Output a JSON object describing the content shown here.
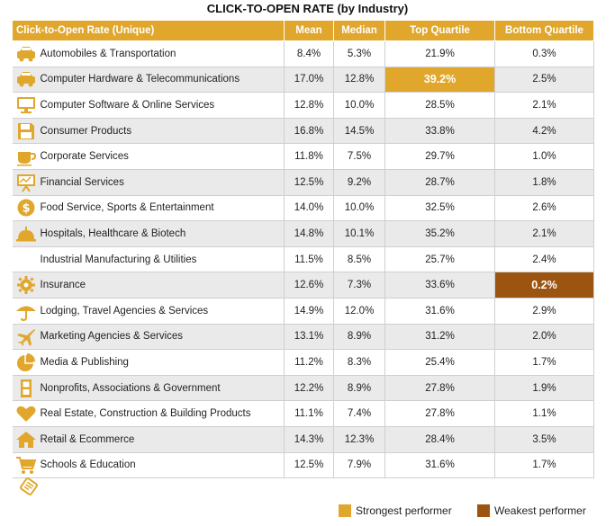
{
  "chart_data": {
    "type": "table",
    "title": "CLICK-TO-OPEN RATE (by Industry)",
    "columns": [
      "Click-to-Open Rate (Unique)",
      "Mean",
      "Median",
      "Top Quartile",
      "Bottom Quartile"
    ],
    "rows": [
      {
        "industry": "Automobiles & Transportation",
        "icon": "car-icon",
        "mean": "8.4%",
        "median": "5.3%",
        "top": "21.9%",
        "bottom": "0.3%"
      },
      {
        "industry": "Computer Hardware & Telecommunications",
        "icon": "car-icon",
        "mean": "17.0%",
        "median": "12.8%",
        "top": "39.2%",
        "bottom": "2.5%"
      },
      {
        "industry": "Computer Software & Online Services",
        "icon": "monitor-icon",
        "mean": "12.8%",
        "median": "10.0%",
        "top": "28.5%",
        "bottom": "2.1%"
      },
      {
        "industry": "Consumer Products",
        "icon": "floppy-disk-icon",
        "mean": "16.8%",
        "median": "14.5%",
        "top": "33.8%",
        "bottom": "4.2%"
      },
      {
        "industry": "Corporate Services",
        "icon": "coffee-cup-icon",
        "mean": "11.8%",
        "median": "7.5%",
        "top": "29.7%",
        "bottom": "1.0%"
      },
      {
        "industry": "Financial Services",
        "icon": "presentation-board-icon",
        "mean": "12.5%",
        "median": "9.2%",
        "top": "28.7%",
        "bottom": "1.8%"
      },
      {
        "industry": "Food Service, Sports & Entertainment",
        "icon": "dollar-coin-icon",
        "mean": "14.0%",
        "median": "10.0%",
        "top": "32.5%",
        "bottom": "2.6%"
      },
      {
        "industry": "Hospitals, Healthcare & Biotech",
        "icon": "service-bell-icon",
        "mean": "14.8%",
        "median": "10.1%",
        "top": "35.2%",
        "bottom": "2.1%"
      },
      {
        "industry": "Industrial Manufacturing & Utilities",
        "icon": "none",
        "mean": "11.5%",
        "median": "8.5%",
        "top": "25.7%",
        "bottom": "2.4%"
      },
      {
        "industry": "Insurance",
        "icon": "gear-icon",
        "mean": "12.6%",
        "median": "7.3%",
        "top": "33.6%",
        "bottom": "0.2%"
      },
      {
        "industry": "Lodging, Travel Agencies & Services",
        "icon": "umbrella-icon",
        "mean": "14.9%",
        "median": "12.0%",
        "top": "31.6%",
        "bottom": "2.9%"
      },
      {
        "industry": "Marketing Agencies & Services",
        "icon": "airplane-icon",
        "mean": "13.1%",
        "median": "8.9%",
        "top": "31.2%",
        "bottom": "2.0%"
      },
      {
        "industry": "Media & Publishing",
        "icon": "pie-chart-icon",
        "mean": "11.2%",
        "median": "8.3%",
        "top": "25.4%",
        "bottom": "1.7%"
      },
      {
        "industry": "Nonprofits, Associations & Government",
        "icon": "building-icon",
        "mean": "12.2%",
        "median": "8.9%",
        "top": "27.8%",
        "bottom": "1.9%"
      },
      {
        "industry": "Real Estate, Construction & Building Products",
        "icon": "heart-icon",
        "mean": "11.1%",
        "median": "7.4%",
        "top": "27.8%",
        "bottom": "1.1%"
      },
      {
        "industry": "Retail & Ecommerce",
        "icon": "house-icon",
        "mean": "14.3%",
        "median": "12.3%",
        "top": "28.4%",
        "bottom": "3.5%"
      },
      {
        "industry": "Schools & Education",
        "icon": "shopping-cart-icon",
        "mean": "12.5%",
        "median": "7.9%",
        "top": "31.6%",
        "bottom": "1.7%"
      }
    ],
    "highlights": {
      "strongest": {
        "row": 1,
        "column": "top"
      },
      "weakest": {
        "row": 9,
        "column": "bottom"
      }
    },
    "legend": [
      {
        "label": "Strongest performer",
        "color": "#E0A72C"
      },
      {
        "label": "Weakest performer",
        "color": "#9B5510"
      }
    ]
  },
  "colors": {
    "accent": "#E0A72C",
    "weak": "#9B5510",
    "row_alt": "#EAEAEA"
  },
  "footer_icon": "tag-icon"
}
